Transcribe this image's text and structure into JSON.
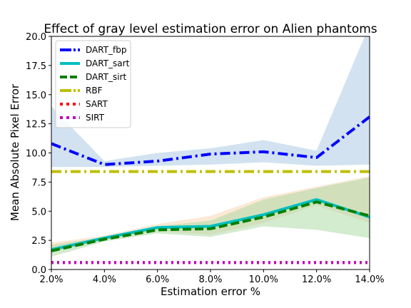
{
  "chart_data": {
    "type": "line",
    "title": "Effect of gray level estimation error on Alien phantoms",
    "xlabel": "Estimation error %",
    "ylabel": "Mean Absolute Pixel Error",
    "x": [
      2,
      4,
      6,
      8,
      10,
      12,
      14
    ],
    "x_tick_labels": [
      "2.0%",
      "4.0%",
      "6.0%",
      "8.0%",
      "10.0%",
      "12.0%",
      "14.0%"
    ],
    "xlim": [
      2,
      14
    ],
    "y_ticks": [
      0.0,
      2.5,
      5.0,
      7.5,
      10.0,
      12.5,
      15.0,
      17.5,
      20.0
    ],
    "y_tick_labels": [
      "0.0",
      "2.5",
      "5.0",
      "7.5",
      "10.0",
      "12.5",
      "15.0",
      "17.5",
      "20.0"
    ],
    "ylim": [
      0,
      20
    ],
    "grid": false,
    "legend_position": "upper-left",
    "series": [
      {
        "name": "DART_fbp",
        "color": "#0000ff",
        "style": "dashdot",
        "values": [
          10.8,
          9.0,
          9.3,
          9.9,
          10.1,
          9.6,
          13.1
        ],
        "band": {
          "color": "#a5c6e3",
          "lower": [
            8.8,
            8.8,
            8.9,
            9.0,
            9.2,
            8.9,
            9.0
          ],
          "upper": [
            14.0,
            9.3,
            10.0,
            10.4,
            11.1,
            10.2,
            21.0
          ]
        }
      },
      {
        "name": "DART_sart",
        "color": "#00bfbf",
        "style": "solid",
        "values": [
          1.7,
          2.7,
          3.6,
          3.7,
          4.7,
          6.0,
          4.5
        ],
        "band": {
          "color": "#f8d3ad",
          "lower": [
            1.5,
            2.5,
            3.3,
            3.0,
            4.0,
            5.5,
            4.0
          ],
          "upper": [
            2.3,
            2.9,
            3.9,
            4.6,
            6.2,
            7.1,
            8.0
          ]
        }
      },
      {
        "name": "DART_sirt",
        "color": "#008000",
        "style": "dashed",
        "values": [
          1.6,
          2.6,
          3.4,
          3.5,
          4.5,
          5.8,
          4.6
        ],
        "band": {
          "color": "#a8d8a0",
          "lower": [
            1.1,
            2.4,
            3.1,
            2.8,
            3.7,
            3.4,
            2.7
          ],
          "upper": [
            2.1,
            2.8,
            3.7,
            4.2,
            6.0,
            7.0,
            7.9
          ]
        }
      },
      {
        "name": "RBF",
        "color": "#bfbf00",
        "style": "dashdot",
        "values": [
          8.4,
          8.4,
          8.4,
          8.4,
          8.4,
          8.4,
          8.4
        ]
      },
      {
        "name": "SART",
        "color": "#ff0000",
        "style": "dotted",
        "values": [
          0.6,
          0.6,
          0.6,
          0.6,
          0.6,
          0.6,
          0.6
        ]
      },
      {
        "name": "SIRT",
        "color": "#bf00bf",
        "style": "dotted",
        "values": [
          0.6,
          0.6,
          0.6,
          0.6,
          0.6,
          0.6,
          0.6
        ]
      }
    ]
  }
}
